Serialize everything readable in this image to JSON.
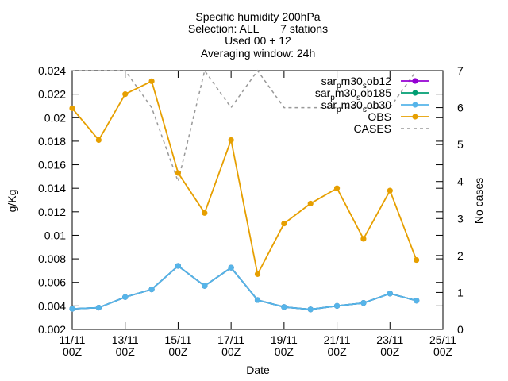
{
  "chart_data": {
    "type": "line",
    "title_lines": [
      "Specific humidity 200hPa",
      "Selection: ALL       7 stations",
      "Used 00 + 12",
      "Averaging window: 24h"
    ],
    "xlabel": "Date",
    "ylabel": "g/Kg",
    "y2label": "No cases",
    "ylim": [
      0.002,
      0.024
    ],
    "y2lim": [
      0,
      7
    ],
    "xlim": [
      0,
      14
    ],
    "yticks": [
      "0.002",
      "0.004",
      "0.006",
      "0.008",
      "0.01",
      "0.012",
      "0.014",
      "0.016",
      "0.018",
      "0.02",
      "0.022",
      "0.024"
    ],
    "y2ticks": [
      "0",
      "1",
      "2",
      "3",
      "4",
      "5",
      "6",
      "7"
    ],
    "xticks": [
      {
        "pos": 0,
        "line1": "11/11",
        "line2": "00Z"
      },
      {
        "pos": 2,
        "line1": "13/11",
        "line2": "00Z"
      },
      {
        "pos": 4,
        "line1": "15/11",
        "line2": "00Z"
      },
      {
        "pos": 6,
        "line1": "17/11",
        "line2": "00Z"
      },
      {
        "pos": 8,
        "line1": "19/11",
        "line2": "00Z"
      },
      {
        "pos": 10,
        "line1": "21/11",
        "line2": "00Z"
      },
      {
        "pos": 12,
        "line1": "23/11",
        "line2": "00Z"
      },
      {
        "pos": 14,
        "line1": "25/11",
        "line2": "00Z"
      }
    ],
    "x": [
      0,
      1,
      2,
      3,
      4,
      5,
      6,
      7,
      8,
      9,
      10,
      11,
      12,
      13
    ],
    "series": [
      {
        "name": "sar_pm30_sob12",
        "legend_parts": [
          "sar",
          "p",
          "m30",
          "s",
          "ob12"
        ],
        "color": "#9400d3",
        "axis": "y",
        "values": [
          0.00375,
          0.00385,
          0.00475,
          0.0054,
          0.0074,
          0.0057,
          0.00725,
          0.0045,
          0.0039,
          0.0037,
          0.004,
          0.00425,
          0.00505,
          0.00445
        ]
      },
      {
        "name": "sar_pm30_sob185",
        "legend_parts": [
          "sar",
          "p",
          "m30",
          "s",
          "ob185"
        ],
        "color": "#009e73",
        "axis": "y",
        "values": [
          0.00375,
          0.00385,
          0.00475,
          0.0054,
          0.0074,
          0.0057,
          0.00725,
          0.0045,
          0.0039,
          0.0037,
          0.004,
          0.00425,
          0.00505,
          0.00445
        ]
      },
      {
        "name": "sar_pm30_sob30",
        "legend_parts": [
          "sar",
          "p",
          "m30",
          "s",
          "ob30"
        ],
        "color": "#56b4e9",
        "axis": "y",
        "values": [
          0.00375,
          0.00385,
          0.00475,
          0.0054,
          0.0074,
          0.0057,
          0.00725,
          0.0045,
          0.0039,
          0.0037,
          0.004,
          0.00425,
          0.00505,
          0.00445
        ]
      },
      {
        "name": "OBS",
        "legend_parts": [
          "OBS"
        ],
        "color": "#e69f00",
        "axis": "y",
        "values": [
          0.0208,
          0.0181,
          0.022,
          0.0231,
          0.0153,
          0.0119,
          0.0181,
          0.0067,
          0.011,
          0.0127,
          0.014,
          0.0097,
          0.0138,
          0.0079
        ]
      },
      {
        "name": "CASES",
        "legend_parts": [
          "CASES"
        ],
        "color": "#999999",
        "axis": "y2",
        "dashed": true,
        "values": [
          7,
          7,
          7,
          6,
          4,
          7,
          6,
          7,
          6,
          6,
          6,
          6,
          6,
          7
        ]
      }
    ],
    "legend_position": "top-right",
    "grid": false
  }
}
